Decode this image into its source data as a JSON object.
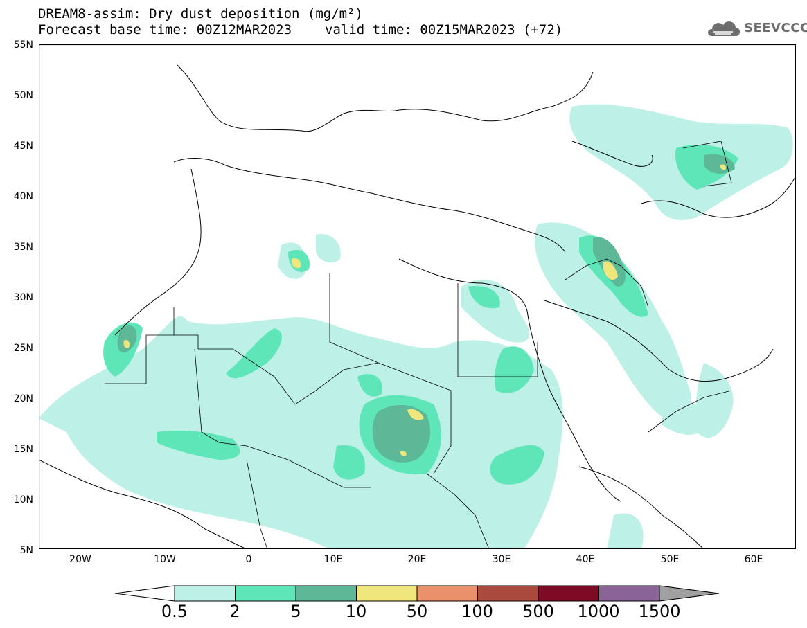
{
  "header": {
    "title": "DREAM8-assim: Dry dust deposition (mg/m²)",
    "base_time": "Forecast base time: 00Z12MAR2023",
    "valid_time": "valid time: 00Z15MAR2023 (+72)"
  },
  "logo": {
    "text": "SEEVCCC",
    "icon": "cloud-icon"
  },
  "axes": {
    "lat_labels": [
      "55N",
      "50N",
      "45N",
      "40N",
      "35N",
      "30N",
      "25N",
      "20N",
      "15N",
      "10N",
      "5N"
    ],
    "lon_labels": [
      "20W",
      "10W",
      "0",
      "10E",
      "20E",
      "30E",
      "40E",
      "50E",
      "60E"
    ]
  },
  "legend": {
    "labels": [
      "0.5",
      "2",
      "5",
      "10",
      "50",
      "100",
      "500",
      "1000",
      "1500"
    ],
    "colors": [
      "#ffffff",
      "#bdf0e6",
      "#5fe6b8",
      "#5cb896",
      "#f0e67e",
      "#e8916a",
      "#a94a3c",
      "#7e0b26",
      "#8a6496",
      "#a0a0a0"
    ]
  }
}
